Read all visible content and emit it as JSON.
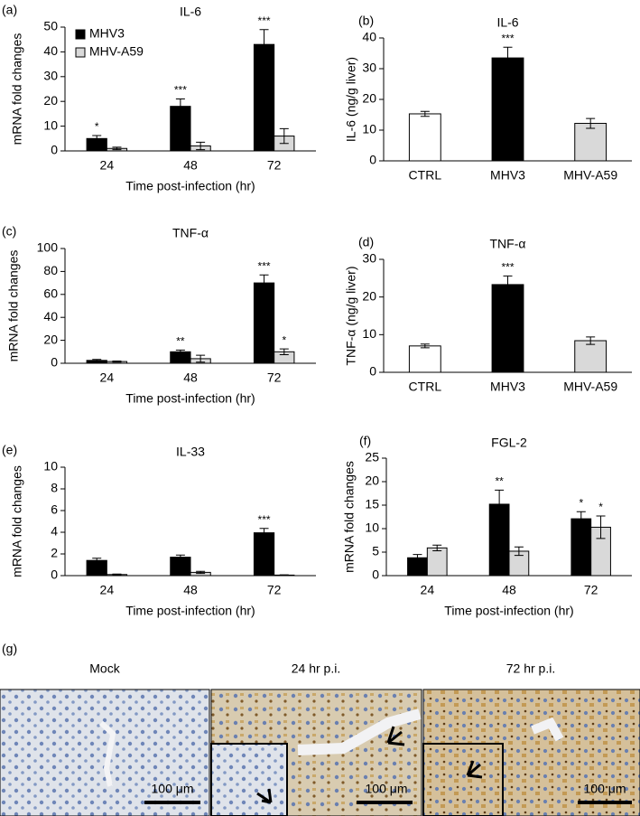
{
  "chart_data": [
    {
      "type": "bar",
      "panel_label": "(a)",
      "title": "IL-6",
      "y_label": "mRNA fold changes",
      "x_label": "Time post-infection (hr)",
      "categories": [
        "24",
        "48",
        "72"
      ],
      "ylim": [
        0,
        50
      ],
      "yticks": [
        0,
        10,
        20,
        30,
        40,
        50
      ],
      "legend": "top-left",
      "series": [
        {
          "name": "MHV3",
          "color": "#000000",
          "values": [
            5,
            18,
            43
          ],
          "errors": [
            1.2,
            3,
            6
          ],
          "significance": [
            "*",
            "***",
            "***"
          ]
        },
        {
          "name": "MHV-A59",
          "color": "#d9d9d9",
          "values": [
            1,
            2,
            6
          ],
          "errors": [
            0.5,
            1.5,
            3
          ],
          "significance": [
            null,
            null,
            null
          ]
        }
      ]
    },
    {
      "type": "bar",
      "panel_label": "(b)",
      "title": "IL-6",
      "y_label": "IL-6 (ng/g liver)",
      "categories": [
        "CTRL",
        "MHV3",
        "MHV-A59"
      ],
      "ylim": [
        0,
        40
      ],
      "yticks": [
        0,
        10,
        20,
        30,
        40
      ],
      "series": [
        {
          "colors": [
            "#ffffff",
            "#000000",
            "#d9d9d9"
          ],
          "values": [
            15.3,
            33.5,
            12.2
          ],
          "errors": [
            0.8,
            3.5,
            1.6
          ],
          "significance": [
            null,
            "***",
            null
          ]
        }
      ]
    },
    {
      "type": "bar",
      "panel_label": "(c)",
      "title": "TNF-α",
      "y_label": "mRNA fold changes",
      "x_label": "Time post-infection (hr)",
      "categories": [
        "24",
        "48",
        "72"
      ],
      "ylim": [
        0,
        100
      ],
      "yticks": [
        0,
        20,
        40,
        60,
        80,
        100
      ],
      "series": [
        {
          "color": "#000000",
          "values": [
            2.5,
            10,
            70
          ],
          "errors": [
            0.8,
            1.5,
            7
          ],
          "significance": [
            null,
            "**",
            "***"
          ]
        },
        {
          "color": "#d9d9d9",
          "values": [
            1.5,
            4,
            10
          ],
          "errors": [
            0.5,
            3,
            2.5
          ],
          "significance": [
            null,
            null,
            "*"
          ]
        }
      ]
    },
    {
      "type": "bar",
      "panel_label": "(d)",
      "title": "TNF-α",
      "y_label": "TNF-α (ng/g liver)",
      "categories": [
        "CTRL",
        "MHV3",
        "MHV-A59"
      ],
      "ylim": [
        0,
        30
      ],
      "yticks": [
        0,
        10,
        20,
        30
      ],
      "series": [
        {
          "colors": [
            "#ffffff",
            "#000000",
            "#d9d9d9"
          ],
          "values": [
            7,
            23.3,
            8.4
          ],
          "errors": [
            0.5,
            2.3,
            1
          ],
          "significance": [
            null,
            "***",
            null
          ]
        }
      ]
    },
    {
      "type": "bar",
      "panel_label": "(e)",
      "title": "IL-33",
      "y_label": "mRNA fold changes",
      "x_label": "Time post-infection (hr)",
      "categories": [
        "24",
        "48",
        "72"
      ],
      "ylim": [
        0,
        10
      ],
      "yticks": [
        0,
        2,
        4,
        6,
        8,
        10
      ],
      "series": [
        {
          "color": "#000000",
          "values": [
            1.4,
            1.7,
            3.95
          ],
          "errors": [
            0.2,
            0.2,
            0.4
          ],
          "significance": [
            null,
            null,
            "***"
          ]
        },
        {
          "color": "#d9d9d9",
          "values": [
            0.1,
            0.3,
            0.05
          ],
          "errors": [
            0.05,
            0.1,
            0.02
          ],
          "significance": [
            null,
            null,
            null
          ]
        }
      ]
    },
    {
      "type": "bar",
      "panel_label": "(f)",
      "title": "FGL-2",
      "y_label": "mRNA fold changes",
      "x_label": "Time post-infection (hr)",
      "categories": [
        "24",
        "48",
        "72"
      ],
      "ylim": [
        0,
        25
      ],
      "yticks": [
        0,
        5,
        10,
        15,
        20,
        25
      ],
      "series": [
        {
          "color": "#000000",
          "values": [
            3.8,
            15.2,
            12.1
          ],
          "errors": [
            0.7,
            3,
            1.5
          ],
          "significance": [
            null,
            "**",
            "*"
          ]
        },
        {
          "color": "#d9d9d9",
          "values": [
            5.9,
            5.2,
            10.3
          ],
          "errors": [
            0.6,
            0.9,
            2.4
          ],
          "significance": [
            null,
            null,
            "*"
          ]
        }
      ]
    }
  ],
  "micrograph": {
    "label": "(g)",
    "panels": [
      {
        "title": "Mock",
        "scale_bar": "100 μm"
      },
      {
        "title": "24 hr p.i.",
        "scale_bar": "100 μm"
      },
      {
        "title": "72 hr p.i.",
        "scale_bar": "100 μm"
      }
    ]
  }
}
